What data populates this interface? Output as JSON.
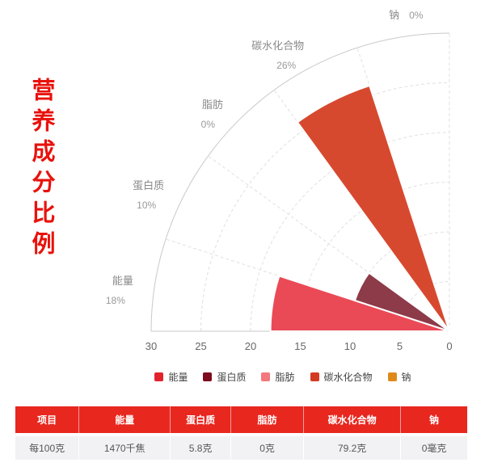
{
  "page_title": "营养成分比例",
  "chart_data": {
    "type": "polar-rose-bar",
    "title": "营养成分比例",
    "categories": [
      "能量",
      "蛋白质",
      "脂肪",
      "碳水化合物",
      "钠"
    ],
    "values": [
      18,
      10,
      0,
      26,
      0
    ],
    "value_labels": [
      "18%",
      "10%",
      "0%",
      "26%",
      "0%"
    ],
    "series": [
      {
        "key": "energy",
        "name": "能量",
        "value": 18,
        "pct_label": "18%",
        "wedge_color": "#ea4a56",
        "legend_color": "#e1232d"
      },
      {
        "key": "protein",
        "name": "蛋白质",
        "value": 10,
        "pct_label": "10%",
        "wedge_color": "#8d3a49",
        "legend_color": "#7d0c1e"
      },
      {
        "key": "fat",
        "name": "脂肪",
        "value": 0,
        "pct_label": "0%",
        "wedge_color": "#f3787d",
        "legend_color": "#f3787d"
      },
      {
        "key": "carbohydrate",
        "name": "碳水化合物",
        "value": 26,
        "pct_label": "26%",
        "wedge_color": "#d7492f",
        "legend_color": "#d23a22"
      },
      {
        "key": "sodium",
        "name": "钠",
        "value": 0,
        "pct_label": "0%",
        "wedge_color": "#de8a1b",
        "legend_color": "#de8a1b"
      }
    ],
    "radial_axis": {
      "min": 0,
      "max": 30,
      "ticks": [
        30,
        25,
        20,
        15,
        10,
        5,
        0
      ],
      "ring_step": 5
    },
    "angle_axis": {
      "span_degrees": 90,
      "slot_degrees": 18
    },
    "legend_position": "bottom",
    "grid_dashed": true
  },
  "table": {
    "headers": [
      "项目",
      "能量",
      "蛋白质",
      "脂肪",
      "碳水化合物",
      "钠"
    ],
    "rows": [
      [
        "每100克",
        "1470千焦",
        "5.8克",
        "0克",
        "79.2克",
        "0毫克"
      ]
    ],
    "header_bg": "#e8271f",
    "row_bg": "#f2f2f4"
  },
  "colors": {
    "title_text": "#e8120c",
    "axis_line": "#c9c9c9",
    "grid_line": "#e0e0e0",
    "tick_text": "#666666",
    "category_text": "#8a8a8a",
    "pct_text": "#999999"
  }
}
